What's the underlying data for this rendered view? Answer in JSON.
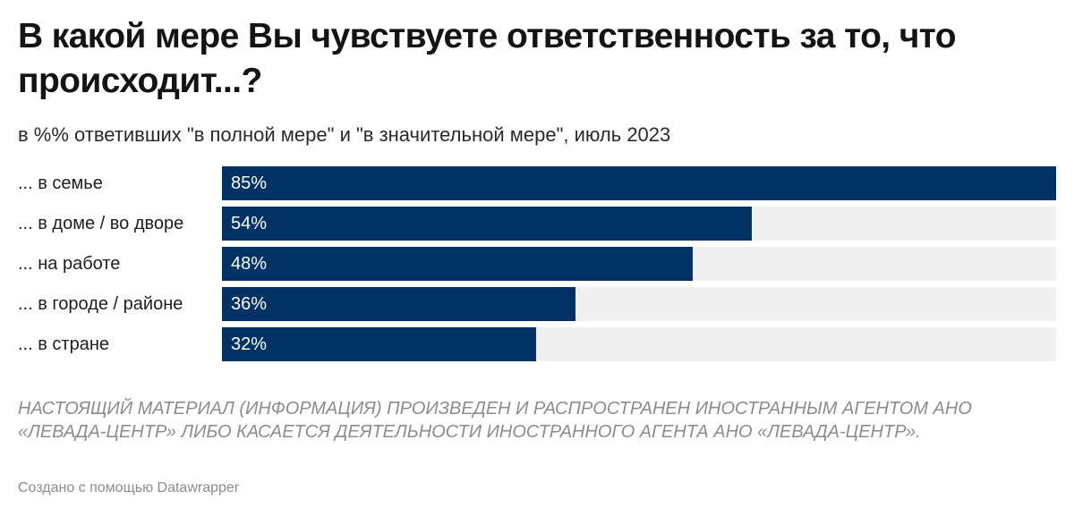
{
  "header": {
    "title": "В какой мере Вы чувствуете ответственность за то, что происходит...?",
    "subtitle": "в %% ответивших \"в полной мере\" и \"в значительной мере\", июль 2023"
  },
  "chart_data": {
    "type": "bar",
    "orientation": "horizontal",
    "title": "В какой мере Вы чувствуете ответственность за то, что происходит...?",
    "subtitle": "в %% ответивших \"в полной мере\" и \"в значительной мере\", июль 2023",
    "categories": [
      "... в семье",
      "... в доме / во дворе",
      "... на работе",
      "... в городе / районе",
      "... в стране"
    ],
    "values": [
      85,
      54,
      48,
      36,
      32
    ],
    "value_labels": [
      "85%",
      "54%",
      "48%",
      "36%",
      "32%"
    ],
    "xlim": [
      0,
      85
    ],
    "grid": false,
    "legend": "none",
    "colors": {
      "bar": "#003265",
      "track": "#f0f0f0",
      "value_text": "#ffffff"
    }
  },
  "footer": {
    "disclaimer": "НАСТОЯЩИЙ МАТЕРИАЛ (ИНФОРМАЦИЯ) ПРОИЗВЕДЕН И РАСПРОСТРАНЕН ИНОСТРАННЫМ АГЕНТОМ АНО «ЛЕВАДА-ЦЕНТР» ЛИБО КАСАЕТСЯ ДЕЯТЕЛЬНОСТИ ИНОСТРАННОГО АГЕНТА АНО «ЛЕВАДА-ЦЕНТР».",
    "credit": "Создано с помощью Datawrapper"
  }
}
